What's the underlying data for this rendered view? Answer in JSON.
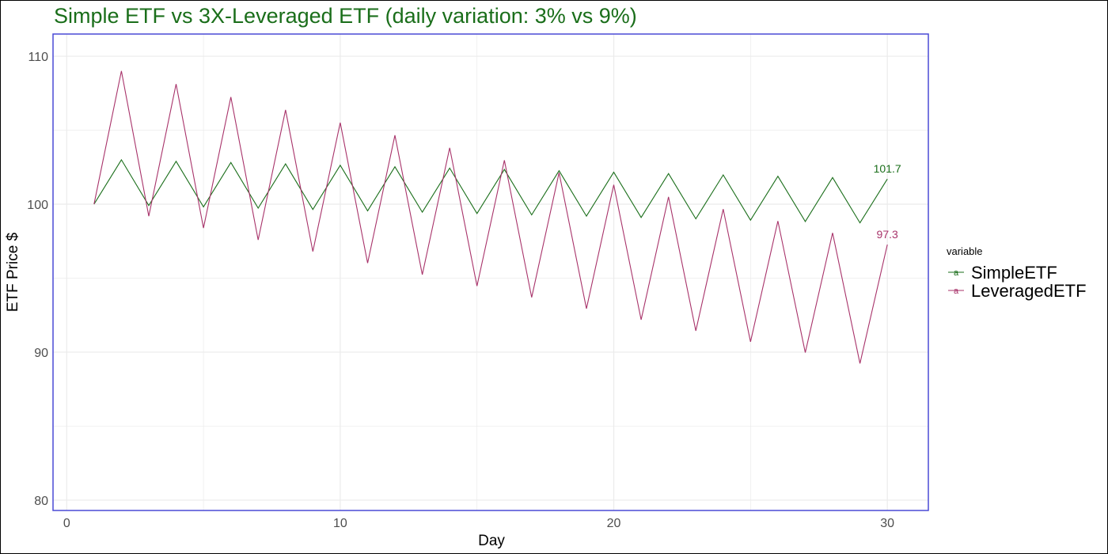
{
  "chart_data": {
    "type": "line",
    "title": "Simple ETF vs 3X-Leveraged ETF (daily variation: 3% vs 9%)",
    "xlabel": "Day",
    "ylabel": "ETF Price $",
    "xlim": [
      -0.5,
      31.5
    ],
    "ylim": [
      79.3,
      111.5
    ],
    "xticks": [
      0,
      10,
      20,
      30
    ],
    "yticks": [
      80,
      90,
      100,
      110
    ],
    "x_tick_labels": [
      "0",
      "10",
      "20",
      "30"
    ],
    "y_tick_labels": [
      "80",
      "90",
      "100",
      "110"
    ],
    "grid": true,
    "legend": {
      "title": "variable",
      "position": "right",
      "entries": [
        {
          "name": "SimpleETF",
          "glyph": "a"
        },
        {
          "name": "LeveragedETF",
          "glyph": "a"
        }
      ]
    },
    "colors": {
      "title": "#1a6e1a",
      "panel_border": "#4a4ad6",
      "grid": "#ebebeb",
      "SimpleETF": "#1a6e1a",
      "LeveragedETF": "#a8336a"
    },
    "x": [
      1,
      2,
      3,
      4,
      5,
      6,
      7,
      8,
      9,
      10,
      11,
      12,
      13,
      14,
      15,
      16,
      17,
      18,
      19,
      20,
      21,
      22,
      23,
      24,
      25,
      26,
      27,
      28,
      29,
      30
    ],
    "series": [
      {
        "name": "SimpleETF",
        "values": [
          100,
          103,
          99.91,
          102.9,
          99.82,
          102.82,
          99.73,
          102.72,
          99.64,
          102.63,
          99.55,
          102.53,
          99.46,
          102.44,
          99.37,
          102.35,
          99.28,
          102.26,
          99.19,
          102.16,
          99.1,
          102.07,
          99.01,
          101.98,
          98.92,
          101.89,
          98.83,
          101.8,
          98.74,
          101.7
        ],
        "end_label": "101.7"
      },
      {
        "name": "LeveragedETF",
        "values": [
          100,
          109,
          99.19,
          108.12,
          98.39,
          107.24,
          97.59,
          106.37,
          96.8,
          105.51,
          96.02,
          104.66,
          95.24,
          103.81,
          94.47,
          102.97,
          93.7,
          102.13,
          92.94,
          101.31,
          92.19,
          100.49,
          91.44,
          99.67,
          90.7,
          98.86,
          89.97,
          98.06,
          89.24,
          97.27
        ],
        "end_label": "97.3"
      }
    ]
  }
}
